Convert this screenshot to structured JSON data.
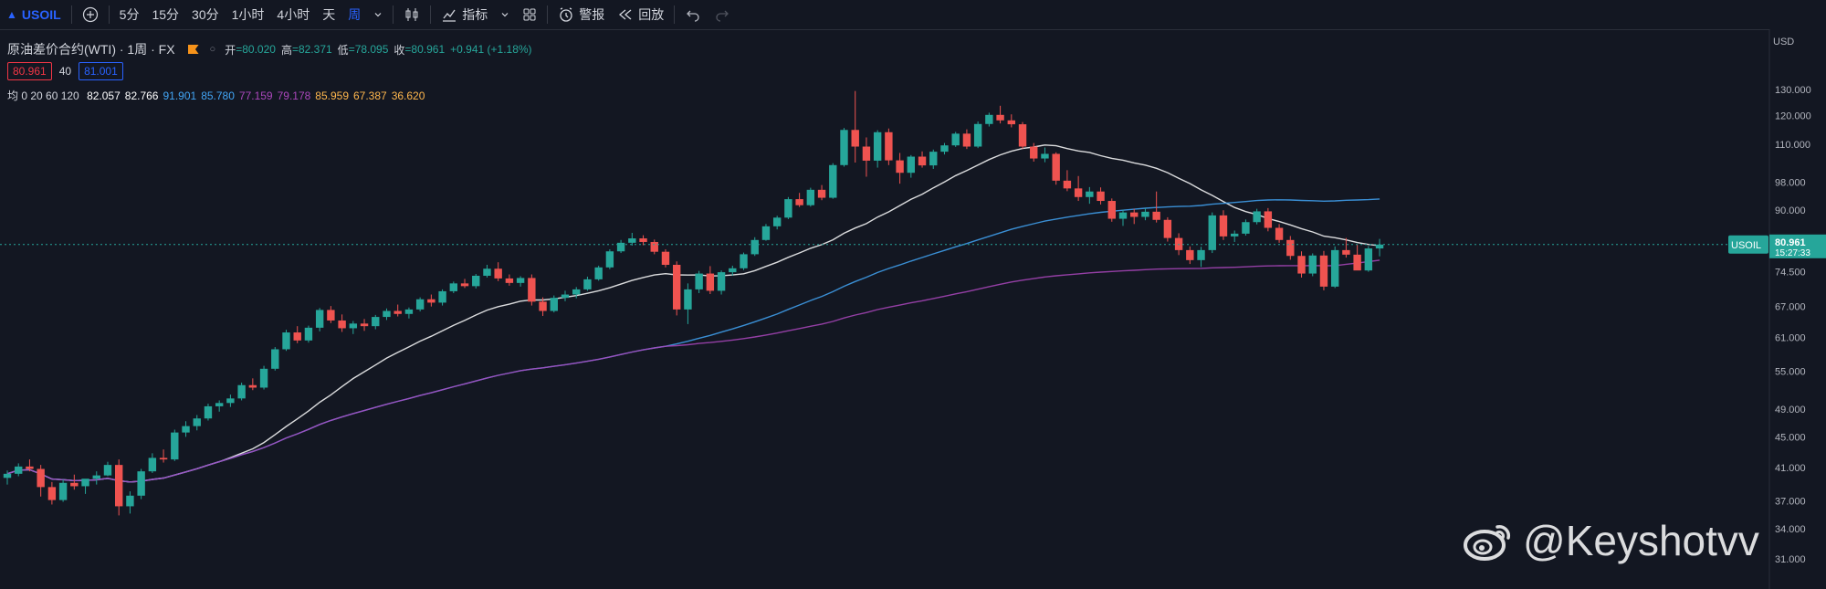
{
  "toolbar": {
    "symbol": "USOIL",
    "intervals": [
      "5分",
      "15分",
      "30分",
      "1小时",
      "4小时",
      "天",
      "周"
    ],
    "active_interval": "周",
    "indicators_label": "指标",
    "alert_label": "警报",
    "replay_label": "回放"
  },
  "legend": {
    "title": "原油差价合约(WTI) · 1周 · FX",
    "ohlc": [
      {
        "label": "开",
        "value": "=80.020"
      },
      {
        "label": "高",
        "value": "=82.371"
      },
      {
        "label": "低",
        "value": "=78.095"
      },
      {
        "label": "收",
        "value": "=80.961"
      },
      {
        "label": "",
        "value": "+0.941 (+1.18%)"
      }
    ],
    "bid": "80.961",
    "spread": "40",
    "ask": "81.001",
    "ma_label": "均 0 20 60 120",
    "ma_values": [
      {
        "value": "82.057",
        "color": "#ffffff"
      },
      {
        "value": "82.766",
        "color": "#ffffff"
      },
      {
        "value": "91.901",
        "color": "#42a5f5"
      },
      {
        "value": "85.780",
        "color": "#42a5f5"
      },
      {
        "value": "77.159",
        "color": "#ab47bc"
      },
      {
        "value": "79.178",
        "color": "#ab47bc"
      },
      {
        "value": "85.959",
        "color": "#ffb74d"
      },
      {
        "value": "67.387",
        "color": "#ffb74d"
      },
      {
        "value": "36.620",
        "color": "#ffb74d"
      }
    ]
  },
  "price_scale": {
    "currency": "USD",
    "ticks": [
      "130.000",
      "120.000",
      "110.000",
      "98.000",
      "90.000",
      "74.500",
      "67.000",
      "61.000",
      "55.000",
      "49.000",
      "45.000",
      "41.000",
      "37.000",
      "34.000",
      "31.000"
    ],
    "last_symbol": "USOIL",
    "last_price": "80.961",
    "countdown": "15:27:33"
  },
  "watermark": "@Keyshotvv",
  "colors": {
    "up": "#26a69a",
    "down": "#ef5350",
    "bg": "#131722"
  },
  "chart_data": {
    "type": "candlestick",
    "title": "原油差价合约(WTI) · 1周 · FX",
    "ylim": [
      31,
      130
    ],
    "y_scale": "log",
    "grid": false,
    "ohlc": [
      [
        39.7,
        40.6,
        38.9,
        40.2
      ],
      [
        40.2,
        41.5,
        39.9,
        41.1
      ],
      [
        41.1,
        42.0,
        40.5,
        40.8
      ],
      [
        40.8,
        41.3,
        37.5,
        38.6
      ],
      [
        38.6,
        39.2,
        36.6,
        37.1
      ],
      [
        37.1,
        39.5,
        36.9,
        39.1
      ],
      [
        39.1,
        40.1,
        38.3,
        38.7
      ],
      [
        38.7,
        39.4,
        37.8,
        39.6
      ],
      [
        39.6,
        40.5,
        38.9,
        40.0
      ],
      [
        40.0,
        41.7,
        39.9,
        41.3
      ],
      [
        41.3,
        42.0,
        35.4,
        36.4
      ],
      [
        36.4,
        38.1,
        35.6,
        37.6
      ],
      [
        37.6,
        40.8,
        37.2,
        40.5
      ],
      [
        40.5,
        42.8,
        40.3,
        42.2
      ],
      [
        42.2,
        43.3,
        41.6,
        42.0
      ],
      [
        42.0,
        46.0,
        41.8,
        45.6
      ],
      [
        45.6,
        47.2,
        45.0,
        46.5
      ],
      [
        46.5,
        48.1,
        45.9,
        47.6
      ],
      [
        47.6,
        49.8,
        47.3,
        49.4
      ],
      [
        49.4,
        50.3,
        48.6,
        49.9
      ],
      [
        49.9,
        51.2,
        49.3,
        50.6
      ],
      [
        50.6,
        53.1,
        50.3,
        52.7
      ],
      [
        52.7,
        53.8,
        51.9,
        52.3
      ],
      [
        52.3,
        55.9,
        52.0,
        55.4
      ],
      [
        55.4,
        59.2,
        55.1,
        58.8
      ],
      [
        58.8,
        62.4,
        58.5,
        61.9
      ],
      [
        61.9,
        63.1,
        59.9,
        60.4
      ],
      [
        60.4,
        63.2,
        60.0,
        62.8
      ],
      [
        62.8,
        66.7,
        62.1,
        66.3
      ],
      [
        66.3,
        67.1,
        63.7,
        64.2
      ],
      [
        64.2,
        65.4,
        62.0,
        62.7
      ],
      [
        62.7,
        64.1,
        61.6,
        63.6
      ],
      [
        63.6,
        64.5,
        62.2,
        63.1
      ],
      [
        63.1,
        65.3,
        62.5,
        64.9
      ],
      [
        64.9,
        66.6,
        64.3,
        66.1
      ],
      [
        66.1,
        67.4,
        65.0,
        65.5
      ],
      [
        65.5,
        66.8,
        64.6,
        66.4
      ],
      [
        66.4,
        68.9,
        66.0,
        68.5
      ],
      [
        68.5,
        69.5,
        67.0,
        67.8
      ],
      [
        67.8,
        70.6,
        67.2,
        70.2
      ],
      [
        70.2,
        72.3,
        69.8,
        71.9
      ],
      [
        71.9,
        72.9,
        70.9,
        71.3
      ],
      [
        71.3,
        74.0,
        70.8,
        73.6
      ],
      [
        73.6,
        76.1,
        73.2,
        75.2
      ],
      [
        75.2,
        76.7,
        72.4,
        73.0
      ],
      [
        73.0,
        73.9,
        71.4,
        72.0
      ],
      [
        72.0,
        73.5,
        71.2,
        73.1
      ],
      [
        73.1,
        73.9,
        67.2,
        68.0
      ],
      [
        68.0,
        68.9,
        65.1,
        66.1
      ],
      [
        66.1,
        69.3,
        65.8,
        68.8
      ],
      [
        68.8,
        70.3,
        68.1,
        69.5
      ],
      [
        69.5,
        71.1,
        68.7,
        70.6
      ],
      [
        70.6,
        73.4,
        70.3,
        72.8
      ],
      [
        72.8,
        75.9,
        72.5,
        75.5
      ],
      [
        75.5,
        79.8,
        75.1,
        79.3
      ],
      [
        79.3,
        82.1,
        78.9,
        81.4
      ],
      [
        81.4,
        83.9,
        80.7,
        82.5
      ],
      [
        82.5,
        83.3,
        80.8,
        81.6
      ],
      [
        81.6,
        82.2,
        78.6,
        79.2
      ],
      [
        79.2,
        79.8,
        75.5,
        76.1
      ],
      [
        76.1,
        76.9,
        65.2,
        66.4
      ],
      [
        66.4,
        71.9,
        63.5,
        70.6
      ],
      [
        70.6,
        74.7,
        69.8,
        74.1
      ],
      [
        74.1,
        75.8,
        69.6,
        70.3
      ],
      [
        70.3,
        74.8,
        69.5,
        74.4
      ],
      [
        74.4,
        75.9,
        73.6,
        75.3
      ],
      [
        75.3,
        79.0,
        74.9,
        78.6
      ],
      [
        78.6,
        82.8,
        78.2,
        82.1
      ],
      [
        82.1,
        86.2,
        81.9,
        85.6
      ],
      [
        85.6,
        88.4,
        84.8,
        87.9
      ],
      [
        87.9,
        93.6,
        87.5,
        93.0
      ],
      [
        93.0,
        94.8,
        90.8,
        91.3
      ],
      [
        91.3,
        96.3,
        90.9,
        95.7
      ],
      [
        95.7,
        97.1,
        92.7,
        93.4
      ],
      [
        93.4,
        103.8,
        93.1,
        103.2
      ],
      [
        103.2,
        115.6,
        102.7,
        114.9
      ],
      [
        114.9,
        129.4,
        104.0,
        109.2
      ],
      [
        109.2,
        112.3,
        99.6,
        104.6
      ],
      [
        104.6,
        114.8,
        102.4,
        114.1
      ],
      [
        114.1,
        115.4,
        103.2,
        104.7
      ],
      [
        104.7,
        107.1,
        97.5,
        100.8
      ],
      [
        100.8,
        106.4,
        99.3,
        105.9
      ],
      [
        105.9,
        107.6,
        102.4,
        103.1
      ],
      [
        103.1,
        108.2,
        102.0,
        107.5
      ],
      [
        107.5,
        110.4,
        106.6,
        109.6
      ],
      [
        109.6,
        114.2,
        109.1,
        113.6
      ],
      [
        113.6,
        115.1,
        108.4,
        109.2
      ],
      [
        109.2,
        117.9,
        108.7,
        117.0
      ],
      [
        117.0,
        121.1,
        116.1,
        120.3
      ],
      [
        120.3,
        123.7,
        117.2,
        118.3
      ],
      [
        118.3,
        120.5,
        115.8,
        116.9
      ],
      [
        116.9,
        117.7,
        108.5,
        109.2
      ],
      [
        109.2,
        110.4,
        104.3,
        105.3
      ],
      [
        105.3,
        108.9,
        104.1,
        106.8
      ],
      [
        106.8,
        107.3,
        97.2,
        98.4
      ],
      [
        98.4,
        101.6,
        95.3,
        96.1
      ],
      [
        96.1,
        99.8,
        92.5,
        93.6
      ],
      [
        93.6,
        96.5,
        91.7,
        95.2
      ],
      [
        95.2,
        96.4,
        91.5,
        92.5
      ],
      [
        92.5,
        93.2,
        86.8,
        87.6
      ],
      [
        87.6,
        90.1,
        85.7,
        89.3
      ],
      [
        89.3,
        90.3,
        86.2,
        88.1
      ],
      [
        88.1,
        90.5,
        87.2,
        89.5
      ],
      [
        89.5,
        95.2,
        86.6,
        87.3
      ],
      [
        87.3,
        88.0,
        81.7,
        82.6
      ],
      [
        82.6,
        83.8,
        78.4,
        79.6
      ],
      [
        79.6,
        80.5,
        76.3,
        77.2
      ],
      [
        77.2,
        80.4,
        75.6,
        79.6
      ],
      [
        79.6,
        89.3,
        78.9,
        88.5
      ],
      [
        88.5,
        89.9,
        82.1,
        83.0
      ],
      [
        83.0,
        84.5,
        81.6,
        83.7
      ],
      [
        83.7,
        87.4,
        83.2,
        86.7
      ],
      [
        86.7,
        90.3,
        86.1,
        89.6
      ],
      [
        89.6,
        90.5,
        84.3,
        85.2
      ],
      [
        85.2,
        86.2,
        81.4,
        82.1
      ],
      [
        82.1,
        83.1,
        77.3,
        78.2
      ],
      [
        78.2,
        79.3,
        73.2,
        74.1
      ],
      [
        74.1,
        78.8,
        73.5,
        78.3
      ],
      [
        78.3,
        79.4,
        70.4,
        71.2
      ],
      [
        71.2,
        80.5,
        70.9,
        79.6
      ],
      [
        79.6,
        82.6,
        77.8,
        78.5
      ],
      [
        78.5,
        80.9,
        75.1,
        74.8
      ],
      [
        74.8,
        80.6,
        74.5,
        80.0
      ],
      [
        80.0,
        82.371,
        78.095,
        80.961
      ]
    ],
    "moving_averages": [
      {
        "period": 20,
        "color": "#ffffff"
      },
      {
        "period": 60,
        "color": "#42a5f5"
      },
      {
        "period": 120,
        "color": "#ab47bc"
      }
    ],
    "last_price": 80.961
  }
}
